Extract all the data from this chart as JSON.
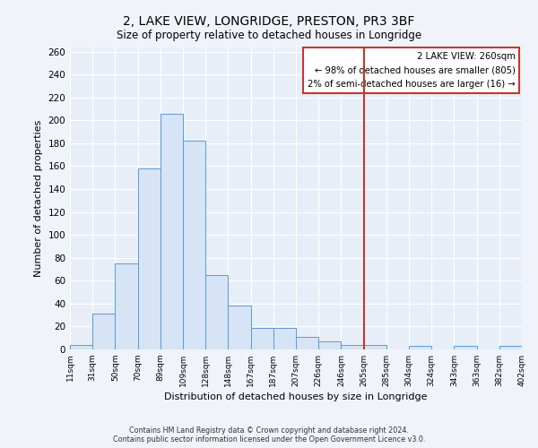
{
  "title": "2, LAKE VIEW, LONGRIDGE, PRESTON, PR3 3BF",
  "subtitle": "Size of property relative to detached houses in Longridge",
  "xlabel": "Distribution of detached houses by size in Longridge",
  "ylabel": "Number of detached properties",
  "bin_labels": [
    "11sqm",
    "31sqm",
    "50sqm",
    "70sqm",
    "89sqm",
    "109sqm",
    "128sqm",
    "148sqm",
    "167sqm",
    "187sqm",
    "207sqm",
    "226sqm",
    "246sqm",
    "265sqm",
    "285sqm",
    "304sqm",
    "324sqm",
    "343sqm",
    "363sqm",
    "382sqm",
    "402sqm"
  ],
  "bar_heights": [
    4,
    31,
    75,
    158,
    206,
    182,
    65,
    38,
    19,
    19,
    11,
    7,
    4,
    4,
    0,
    3,
    0,
    3,
    0,
    3
  ],
  "bar_color": "#d6e4f5",
  "bar_edge_color": "#5b9bd5",
  "vline_x_index": 13,
  "vline_color": "#c0392b",
  "annotation_title": "2 LAKE VIEW: 260sqm",
  "annotation_line1": "← 98% of detached houses are smaller (805)",
  "annotation_line2": "2% of semi-detached houses are larger (16) →",
  "annotation_box_color": "#c0392b",
  "footer1": "Contains HM Land Registry data © Crown copyright and database right 2024.",
  "footer2": "Contains public sector information licensed under the Open Government Licence v3.0.",
  "ylim": [
    0,
    264
  ],
  "yticks": [
    0,
    20,
    40,
    60,
    80,
    100,
    120,
    140,
    160,
    180,
    200,
    220,
    240,
    260
  ],
  "fig_bg_color": "#f0f4fa",
  "plot_bg_color": "#e8eef8",
  "grid_color": "#ffffff"
}
